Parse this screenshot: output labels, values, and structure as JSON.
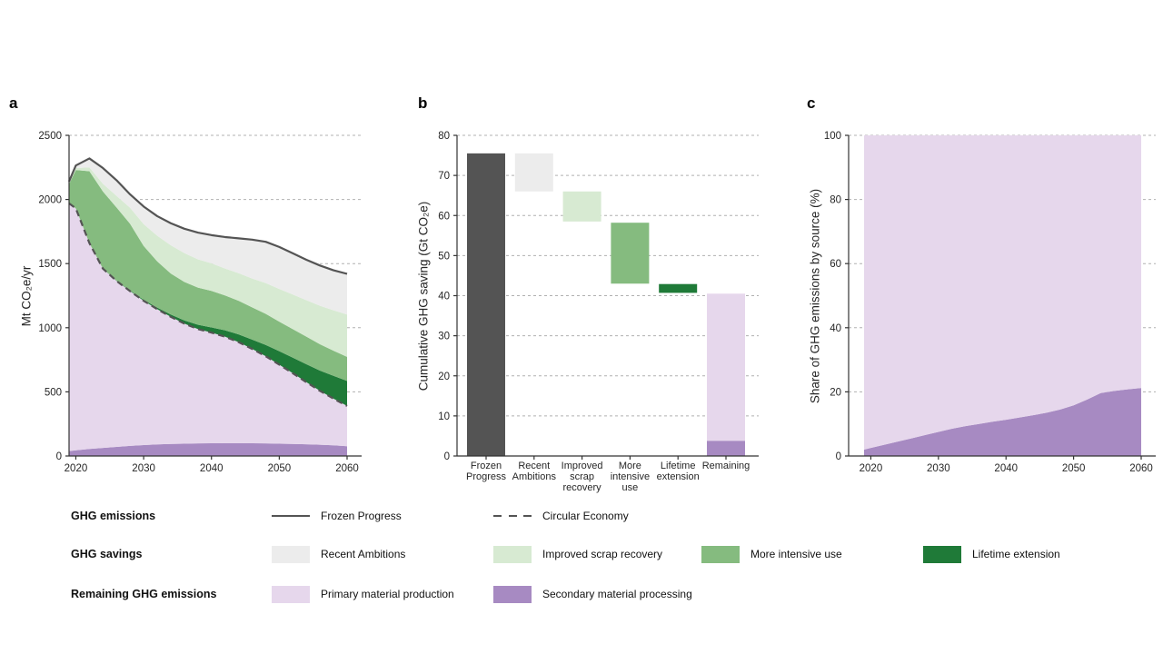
{
  "panels": {
    "a": {
      "letter": "a",
      "y_axis_label": "Mt CO₂e/yr"
    },
    "b": {
      "letter": "b",
      "y_axis_label": "Cumulative GHG saving (Gt CO₂e)"
    },
    "c": {
      "letter": "c",
      "y_axis_label": "Share of GHG emissions by source (%)"
    }
  },
  "colors": {
    "line": "#545454",
    "dark_bar": "#545454",
    "gray": "#ececec",
    "light_green": "#d7ead2",
    "medium_green": "#85bb7f",
    "dark_green": "#1f7a38",
    "light_purple": "#e6d7ec",
    "medium_purple": "#a78ac2",
    "grid": "#b0b0b0",
    "axis": "#333333",
    "tick_text": "#262626"
  },
  "legend": {
    "rows": [
      {
        "label": "GHG emissions",
        "items": [
          {
            "swatch": "line-solid",
            "text": "Frozen Progress"
          },
          {
            "swatch": "line-dashed",
            "text": "Circular Economy"
          }
        ]
      },
      {
        "label": "GHG savings",
        "items": [
          {
            "swatch": "box",
            "color": "gray",
            "text": "Recent Ambitions"
          },
          {
            "swatch": "box",
            "color": "light_green",
            "text": "Improved scrap recovery"
          },
          {
            "swatch": "box",
            "color": "medium_green",
            "text": "More intensive use"
          },
          {
            "swatch": "box",
            "color": "dark_green",
            "text": "Lifetime extension"
          }
        ]
      },
      {
        "label": "Remaining GHG emissions",
        "items": [
          {
            "swatch": "box",
            "color": "light_purple",
            "text": "Primary material production"
          },
          {
            "swatch": "box",
            "color": "medium_purple",
            "text": "Secondary material processing"
          }
        ]
      }
    ]
  },
  "chart_data": [
    {
      "panel": "a",
      "type": "area",
      "ylabel": "Mt CO₂e/yr",
      "ylim": [
        0,
        2500
      ],
      "yticks": [
        0,
        500,
        1000,
        1500,
        2000,
        2500
      ],
      "xlim": [
        2019,
        2060
      ],
      "xticks": [
        2020,
        2030,
        2040,
        2050,
        2060
      ],
      "grid": "dashed-horizontal",
      "years": [
        2019,
        2020,
        2022,
        2024,
        2026,
        2028,
        2030,
        2032,
        2034,
        2036,
        2038,
        2040,
        2042,
        2044,
        2046,
        2048,
        2050,
        2052,
        2054,
        2056,
        2058,
        2060
      ],
      "stack_boundaries": [
        {
          "name": "Secondary material processing",
          "color": "medium_purple",
          "top": [
            38,
            44,
            55,
            63,
            71,
            79,
            85,
            90,
            94,
            96,
            98,
            99,
            100,
            100,
            99,
            98,
            96,
            94,
            91,
            88,
            83,
            76
          ]
        },
        {
          "name": "Primary material production",
          "color": "light_purple",
          "top": [
            1970,
            1930,
            1660,
            1460,
            1365,
            1285,
            1210,
            1145,
            1085,
            1032,
            990,
            962,
            930,
            888,
            835,
            778,
            712,
            645,
            575,
            508,
            447,
            390
          ]
        },
        {
          "name": "Lifetime extension",
          "color": "dark_green",
          "top": [
            1970,
            1930,
            1660,
            1462,
            1368,
            1290,
            1218,
            1157,
            1103,
            1057,
            1023,
            1002,
            980,
            948,
            907,
            866,
            817,
            767,
            715,
            666,
            625,
            585
          ]
        },
        {
          "name": "More intensive use",
          "color": "medium_green",
          "top": [
            2120,
            2230,
            2220,
            2062,
            1938,
            1810,
            1638,
            1517,
            1423,
            1357,
            1313,
            1287,
            1252,
            1210,
            1159,
            1108,
            1047,
            989,
            930,
            871,
            821,
            773
          ]
        },
        {
          "name": "Improved scrap recovery",
          "color": "light_green",
          "top": [
            2130,
            2245,
            2250,
            2122,
            2028,
            1935,
            1808,
            1717,
            1643,
            1582,
            1533,
            1502,
            1462,
            1425,
            1384,
            1348,
            1302,
            1259,
            1215,
            1171,
            1136,
            1103
          ]
        },
        {
          "name": "Recent Ambitions",
          "color": "gray",
          "top": [
            2140,
            2265,
            2320,
            2245,
            2150,
            2040,
            1945,
            1870,
            1815,
            1772,
            1742,
            1722,
            1707,
            1697,
            1687,
            1670,
            1630,
            1580,
            1530,
            1485,
            1448,
            1420
          ]
        }
      ],
      "lines": [
        {
          "name": "Frozen Progress",
          "style": "solid",
          "values": [
            2140,
            2265,
            2320,
            2245,
            2150,
            2040,
            1945,
            1870,
            1815,
            1772,
            1742,
            1722,
            1707,
            1697,
            1687,
            1670,
            1630,
            1580,
            1530,
            1485,
            1448,
            1420
          ]
        },
        {
          "name": "Circular Economy",
          "style": "dashed",
          "values": [
            1970,
            1930,
            1660,
            1460,
            1365,
            1285,
            1210,
            1145,
            1085,
            1032,
            990,
            962,
            930,
            888,
            835,
            778,
            712,
            645,
            575,
            508,
            447,
            390
          ]
        }
      ]
    },
    {
      "panel": "b",
      "type": "bar",
      "subtype": "waterfall",
      "ylabel": "Cumulative GHG saving (Gt CO₂e)",
      "ylim": [
        0,
        80
      ],
      "yticks": [
        0,
        10,
        20,
        30,
        40,
        50,
        60,
        70,
        80
      ],
      "grid": "dashed-horizontal",
      "bars": [
        {
          "label_lines": [
            "Frozen",
            "Progress"
          ],
          "segments": [
            {
              "from": 0,
              "to": 75.5,
              "color": "dark_bar"
            }
          ]
        },
        {
          "label_lines": [
            "Recent",
            "Ambitions"
          ],
          "segments": [
            {
              "from": 66,
              "to": 75.5,
              "color": "gray"
            }
          ]
        },
        {
          "label_lines": [
            "Improved",
            "scrap",
            "recovery"
          ],
          "segments": [
            {
              "from": 58.5,
              "to": 66,
              "color": "light_green"
            }
          ]
        },
        {
          "label_lines": [
            "More",
            "intensive",
            "use"
          ],
          "segments": [
            {
              "from": 43,
              "to": 58.2,
              "color": "medium_green"
            }
          ]
        },
        {
          "label_lines": [
            "Lifetime",
            "extension"
          ],
          "segments": [
            {
              "from": 40.7,
              "to": 42.9,
              "color": "dark_green"
            }
          ]
        },
        {
          "label_lines": [
            "Remaining"
          ],
          "segments": [
            {
              "from": 0,
              "to": 3.8,
              "color": "medium_purple"
            },
            {
              "from": 3.8,
              "to": 40.5,
              "color": "light_purple"
            }
          ]
        }
      ]
    },
    {
      "panel": "c",
      "type": "area",
      "subtype": "100%-stacked",
      "ylabel": "Share of GHG emissions by source (%)",
      "ylim": [
        0,
        100
      ],
      "yticks": [
        0,
        20,
        40,
        60,
        80,
        100
      ],
      "xlim": [
        2019,
        2060
      ],
      "xticks": [
        2020,
        2030,
        2040,
        2050,
        2060
      ],
      "grid": "dashed-horizontal",
      "years": [
        2019,
        2020,
        2022,
        2024,
        2026,
        2028,
        2030,
        2032,
        2034,
        2036,
        2038,
        2040,
        2042,
        2044,
        2046,
        2048,
        2050,
        2052,
        2054,
        2056,
        2058,
        2060
      ],
      "stack_boundaries": [
        {
          "name": "Secondary material processing",
          "color": "medium_purple",
          "top": [
            2.0,
            2.5,
            3.5,
            4.5,
            5.5,
            6.5,
            7.5,
            8.5,
            9.3,
            10.0,
            10.7,
            11.3,
            12.0,
            12.7,
            13.5,
            14.5,
            15.8,
            17.6,
            19.6,
            20.3,
            20.8,
            21.2
          ]
        },
        {
          "name": "Primary material production",
          "color": "light_purple",
          "top": [
            100,
            100,
            100,
            100,
            100,
            100,
            100,
            100,
            100,
            100,
            100,
            100,
            100,
            100,
            100,
            100,
            100,
            100,
            100,
            100,
            100,
            100
          ]
        }
      ]
    }
  ]
}
